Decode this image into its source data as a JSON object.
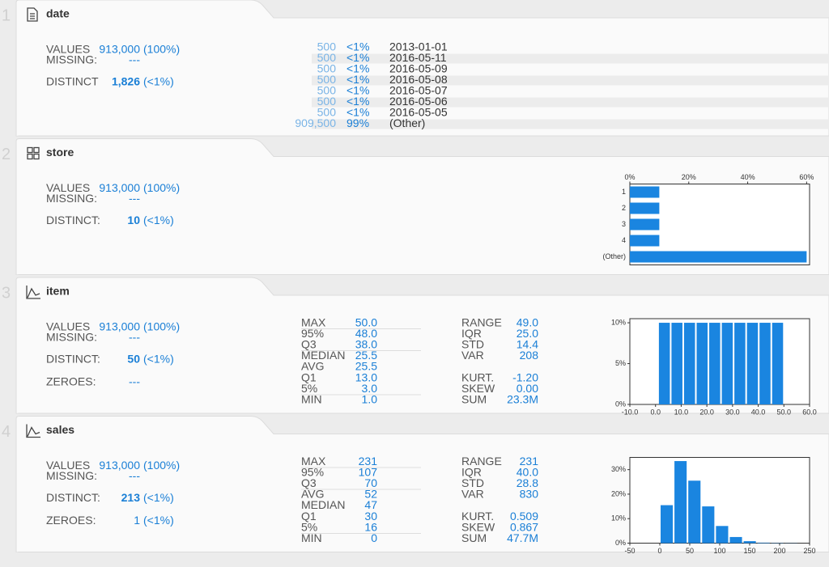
{
  "columns": [
    {
      "index": "1",
      "name": "date",
      "summary": [
        {
          "label": "VALUES",
          "value": "913,000",
          "pct": "(100%)"
        },
        {
          "label": "MISSING:",
          "value": "---"
        },
        {
          "label": "DISTINCT",
          "value": "1,826",
          "pct": "(<1%)"
        }
      ],
      "top_values": [
        {
          "count": "500",
          "pct": "<1%",
          "value": "2013-01-01"
        },
        {
          "count": "500",
          "pct": "<1%",
          "value": "2016-05-11"
        },
        {
          "count": "500",
          "pct": "<1%",
          "value": "2016-05-09"
        },
        {
          "count": "500",
          "pct": "<1%",
          "value": "2016-05-08"
        },
        {
          "count": "500",
          "pct": "<1%",
          "value": "2016-05-07"
        },
        {
          "count": "500",
          "pct": "<1%",
          "value": "2016-05-06"
        },
        {
          "count": "500",
          "pct": "<1%",
          "value": "2016-05-05"
        },
        {
          "count": "909,500",
          "pct": "99%",
          "value": "(Other)"
        }
      ]
    },
    {
      "index": "2",
      "name": "store",
      "summary": [
        {
          "label": "VALUES",
          "value": "913,000",
          "pct": "(100%)"
        },
        {
          "label": "MISSING:",
          "value": "---"
        },
        {
          "label": "DISTINCT:",
          "value": "10",
          "pct": "(<1%)"
        }
      ],
      "chart": {
        "type": "bar",
        "categories": [
          "1",
          "2",
          "3",
          "4",
          "(Other)"
        ],
        "values": [
          10,
          10,
          10,
          10,
          60
        ],
        "color": "#1a85e0",
        "xlim": [
          0,
          61
        ],
        "xticks": [
          {
            "value": 0,
            "label": "0%"
          },
          {
            "value": 20,
            "label": "20%"
          },
          {
            "value": 40,
            "label": "40%"
          },
          {
            "value": 60,
            "label": "60%"
          }
        ]
      }
    },
    {
      "index": "3",
      "name": "item",
      "summary": [
        {
          "label": "VALUES",
          "value": "913,000",
          "pct": "(100%)"
        },
        {
          "label": "MISSING:",
          "value": "---"
        },
        {
          "label": "DISTINCT:",
          "value": "50",
          "pct": "(<1%)"
        },
        {
          "label": "ZEROES:",
          "value": "---"
        }
      ],
      "quantiles": [
        {
          "label": "MAX",
          "value": "50.0"
        },
        {
          "label": "95%",
          "value": "48.0"
        },
        {
          "label": "Q3",
          "value": "38.0"
        },
        {
          "label": "MEDIAN",
          "value": "25.5"
        },
        {
          "label": "AVG",
          "value": "25.5"
        },
        {
          "label": "Q1",
          "value": "13.0"
        },
        {
          "label": "5%",
          "value": "3.0"
        },
        {
          "label": "MIN",
          "value": "1.0"
        }
      ],
      "moments": [
        {
          "label": "RANGE",
          "value": "49.0"
        },
        {
          "label": "IQR",
          "value": "25.0"
        },
        {
          "label": "STD",
          "value": "14.4"
        },
        {
          "label": "VAR",
          "value": "208"
        },
        {
          "label": "KURT.",
          "value": "-1.20"
        },
        {
          "label": "SKEW",
          "value": "0.00"
        },
        {
          "label": "SUM",
          "value": "23.3M"
        }
      ],
      "chart": {
        "type": "histogram",
        "color": "#1a85e0",
        "bins": [
          1,
          5.9,
          10.8,
          15.7,
          20.6,
          25.5,
          30.4,
          35.3,
          40.2,
          45.1,
          50
        ],
        "values": [
          10,
          10,
          10,
          10,
          10,
          10,
          10,
          10,
          10,
          10
        ],
        "xlim": [
          -10,
          60
        ],
        "xticks": [
          {
            "value": -10,
            "label": "-10.0"
          },
          {
            "value": 0,
            "label": "0.0"
          },
          {
            "value": 10,
            "label": "10.0"
          },
          {
            "value": 20,
            "label": "20.0"
          },
          {
            "value": 30,
            "label": "30.0"
          },
          {
            "value": 40,
            "label": "40.0"
          },
          {
            "value": 50,
            "label": "50.0"
          },
          {
            "value": 60,
            "label": "60.0"
          }
        ],
        "ylim": [
          0,
          10.5
        ],
        "yticks": [
          {
            "value": 0,
            "label": "0%"
          },
          {
            "value": 5,
            "label": "5%"
          },
          {
            "value": 10,
            "label": "10%"
          }
        ]
      }
    },
    {
      "index": "4",
      "name": "sales",
      "summary": [
        {
          "label": "VALUES",
          "value": "913,000",
          "pct": "(100%)"
        },
        {
          "label": "MISSING:",
          "value": "---"
        },
        {
          "label": "DISTINCT:",
          "value": "213",
          "pct": "(<1%)"
        },
        {
          "label": "ZEROES:",
          "value": "1",
          "pct": "(<1%)"
        }
      ],
      "quantiles": [
        {
          "label": "MAX",
          "value": "231"
        },
        {
          "label": "95%",
          "value": "107"
        },
        {
          "label": "Q3",
          "value": "70"
        },
        {
          "label": "AVG",
          "value": "52"
        },
        {
          "label": "MEDIAN",
          "value": "47"
        },
        {
          "label": "Q1",
          "value": "30"
        },
        {
          "label": "5%",
          "value": "16"
        },
        {
          "label": "MIN",
          "value": "0"
        }
      ],
      "moments": [
        {
          "label": "RANGE",
          "value": "231"
        },
        {
          "label": "IQR",
          "value": "40.0"
        },
        {
          "label": "STD",
          "value": "28.8"
        },
        {
          "label": "VAR",
          "value": "830"
        },
        {
          "label": "KURT.",
          "value": "0.509"
        },
        {
          "label": "SKEW",
          "value": "0.867"
        },
        {
          "label": "SUM",
          "value": "47.7M"
        }
      ],
      "chart": {
        "type": "histogram",
        "color": "#1a85e0",
        "bins": [
          0,
          23.1,
          46.2,
          69.3,
          92.4,
          115.5,
          138.6,
          161.7,
          184.8,
          207.9,
          231
        ],
        "values": [
          15.5,
          33.5,
          25.5,
          15,
          7,
          2.5,
          0.8,
          0.2,
          0.1,
          0.05
        ],
        "xlim": [
          -50,
          250
        ],
        "xticks": [
          -50,
          0,
          50,
          100,
          150,
          200,
          250
        ],
        "ylim": [
          0,
          35
        ],
        "yticks": [
          {
            "value": 0,
            "label": "0%"
          },
          {
            "value": 10,
            "label": "10%"
          },
          {
            "value": 20,
            "label": "20%"
          },
          {
            "value": 30,
            "label": "30%"
          }
        ]
      }
    }
  ]
}
